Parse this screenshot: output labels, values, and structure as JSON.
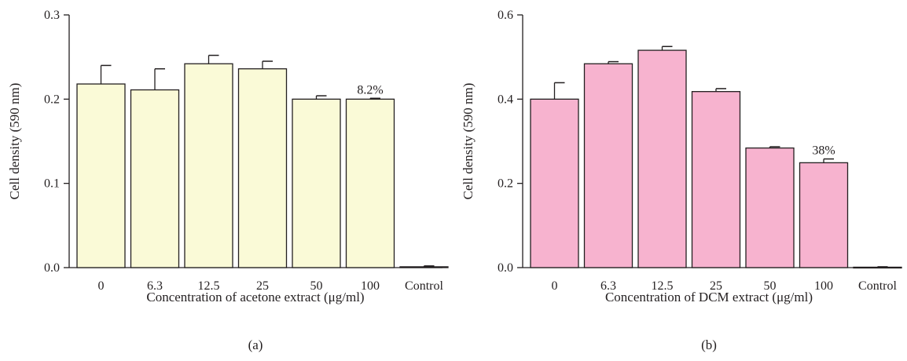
{
  "chart_data": [
    {
      "type": "bar",
      "panel_label": "(a)",
      "xlabel": "Concentration of acetone extract (μg/ml)",
      "ylabel": "Cell density (590 nm)",
      "ylim": [
        0,
        0.3
      ],
      "yticks": [
        "0.0",
        "0.1",
        "0.2",
        "0.3"
      ],
      "yticks_values": [
        0,
        0.1,
        0.2,
        0.3
      ],
      "categories": [
        "0",
        "6.3",
        "12.5",
        "25",
        "50",
        "100",
        "Control"
      ],
      "values": [
        0.218,
        0.211,
        0.242,
        0.236,
        0.2,
        0.2,
        0.001
      ],
      "errors": [
        0.022,
        0.025,
        0.01,
        0.009,
        0.004,
        0.001,
        0.001
      ],
      "bar_color": "#fafad7",
      "annotation": {
        "category": "100",
        "text": "8.2%"
      }
    },
    {
      "type": "bar",
      "panel_label": "(b)",
      "xlabel": "Concentration of DCM extract (μg/ml)",
      "ylabel": "Cell density (590 nm)",
      "ylim": [
        0,
        0.6
      ],
      "yticks": [
        "0.0",
        "0.2",
        "0.4",
        "0.6"
      ],
      "yticks_values": [
        0,
        0.2,
        0.4,
        0.6
      ],
      "categories": [
        "0",
        "6.3",
        "12.5",
        "25",
        "50",
        "100",
        "Control"
      ],
      "values": [
        0.4,
        0.484,
        0.516,
        0.418,
        0.284,
        0.249,
        0.001
      ],
      "errors": [
        0.039,
        0.005,
        0.009,
        0.007,
        0.003,
        0.009,
        0.001
      ],
      "bar_color": "#f7b3cf",
      "annotation": {
        "category": "100",
        "text": "38%"
      }
    }
  ]
}
